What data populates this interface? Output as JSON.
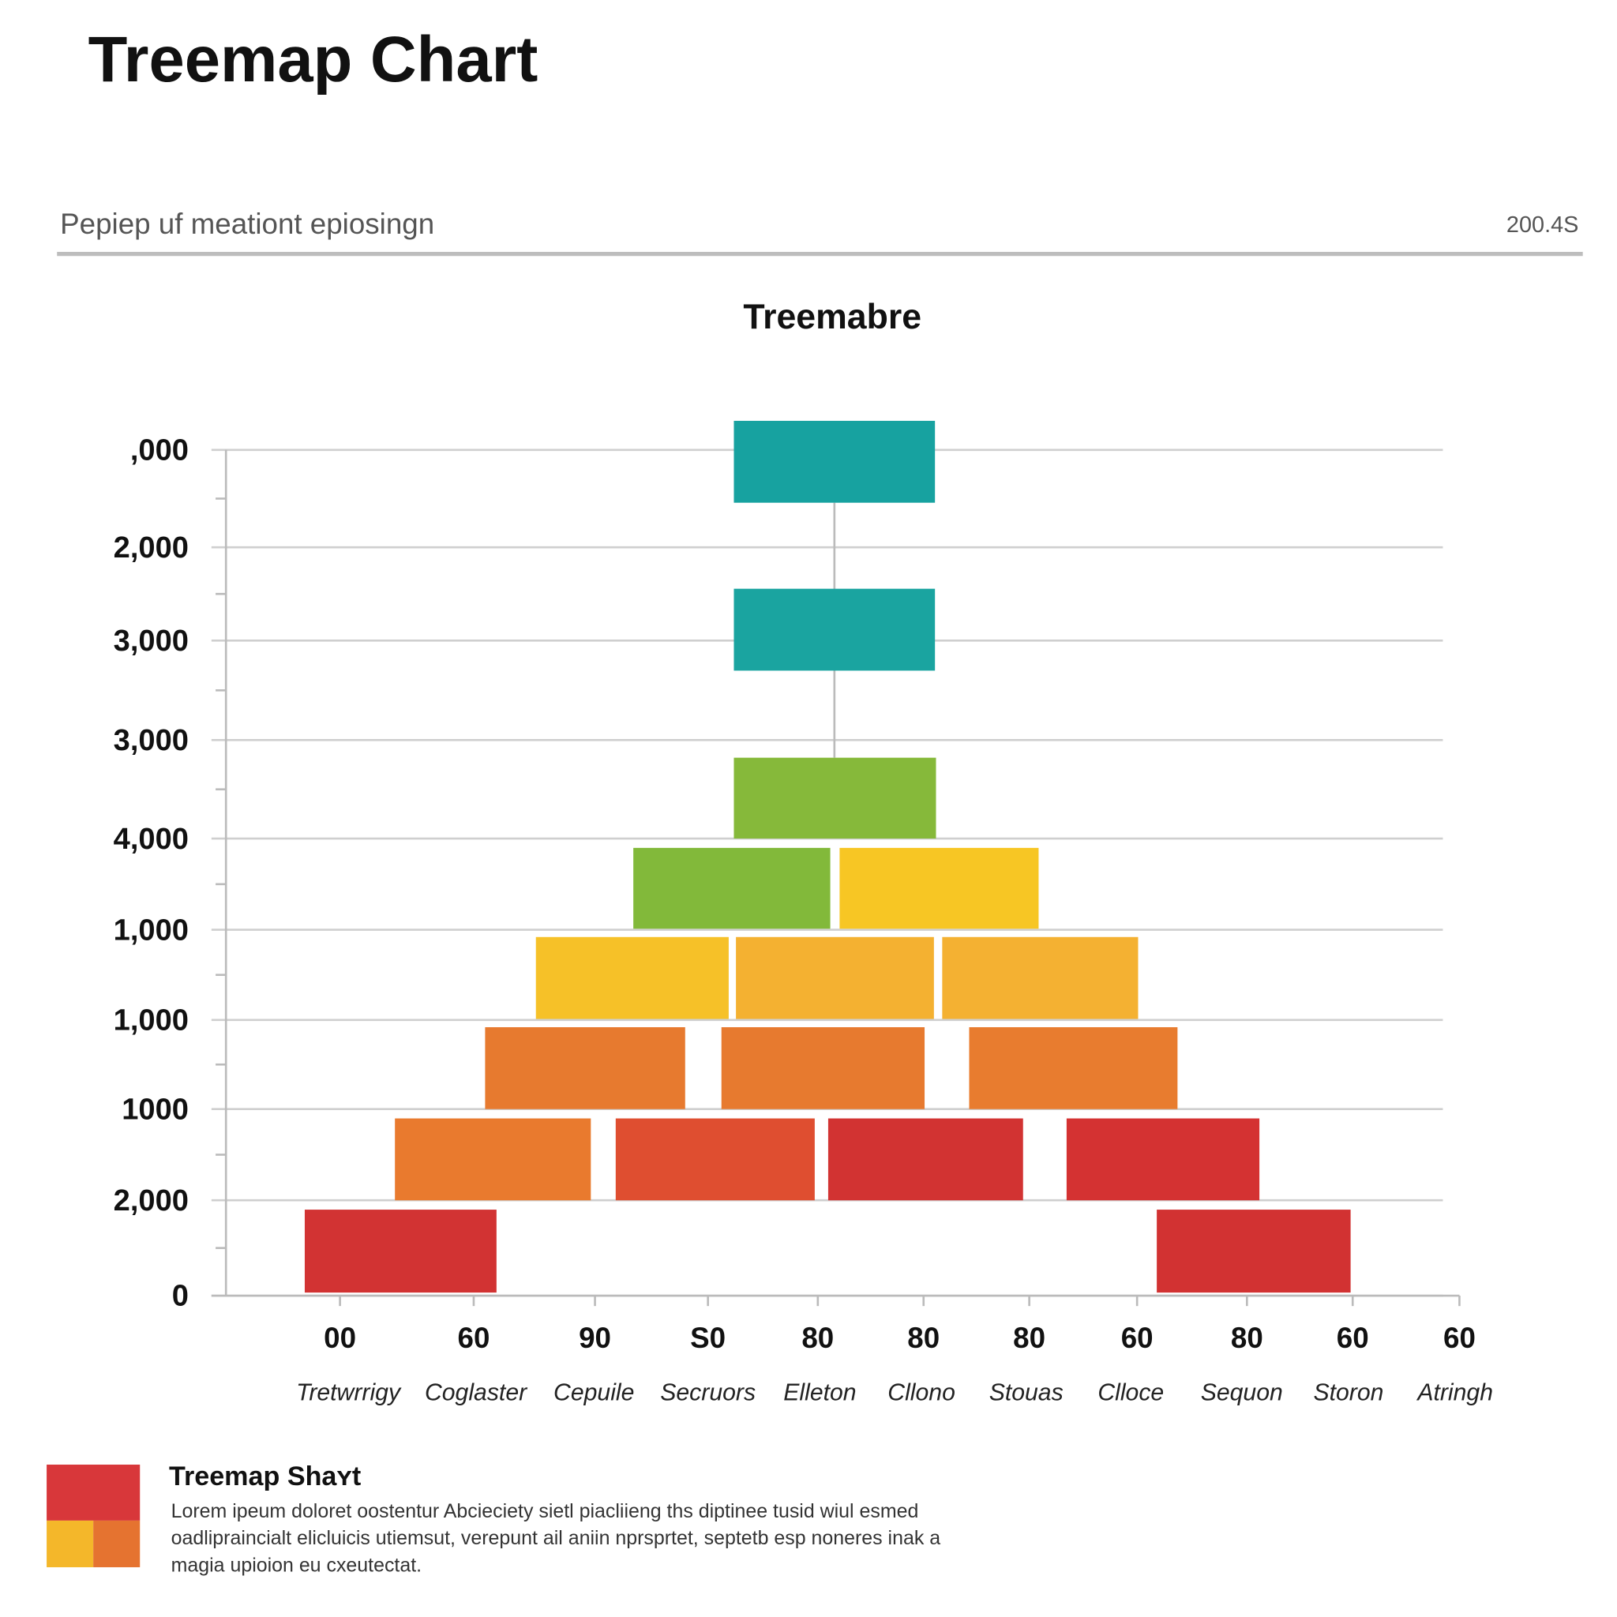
{
  "header": {
    "title": "Treemap Chart",
    "subtitle": "Pepiep uf meationt epiosingn",
    "meta": "200.4S"
  },
  "chart": {
    "title": "Treemabre",
    "y_labels": [
      ",000",
      "2,000",
      "3,000",
      "3,000",
      "4,000",
      "1,000",
      "1,000",
      "1000",
      "2,000",
      "0"
    ],
    "x_labels": [
      "00",
      "60",
      "90",
      "S0",
      "80",
      "80",
      "80",
      "60",
      "80",
      "60",
      "60"
    ],
    "x_names": [
      "Tretwrrigy",
      "Coglaster",
      "Cepuile",
      "Secruors",
      "Elleton",
      "Cllono",
      "Stouas",
      "Clloce",
      "Sequon",
      "Storon",
      "Atringh"
    ]
  },
  "footer": {
    "title": "Treemap Shaʏt",
    "lines": [
      "Lorem ipeum doloret oostentur Abcieciety sietl piacliieng ths diptinee tusid wiul esmed",
      "oadlipraincialt elicluicis utiemsut, verepunt ail aniin nprsprtet, septetb esp noneres inak a",
      "magia upioion eu cxeutectat."
    ]
  }
}
